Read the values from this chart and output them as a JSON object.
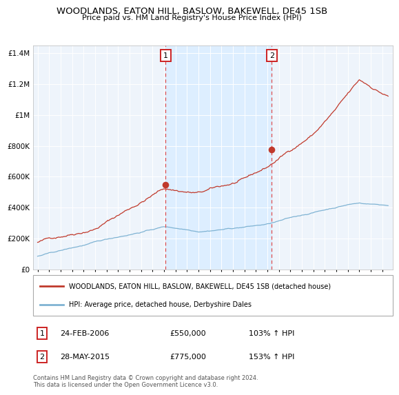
{
  "title": "WOODLANDS, EATON HILL, BASLOW, BAKEWELL, DE45 1SB",
  "subtitle": "Price paid vs. HM Land Registry's House Price Index (HPI)",
  "legend_line1": "WOODLANDS, EATON HILL, BASLOW, BAKEWELL, DE45 1SB (detached house)",
  "legend_line2": "HPI: Average price, detached house, Derbyshire Dales",
  "marker1_date": "24-FEB-2006",
  "marker1_price": "£550,000",
  "marker1_hpi": "103% ↑ HPI",
  "marker2_date": "28-MAY-2015",
  "marker2_price": "£775,000",
  "marker2_hpi": "153% ↑ HPI",
  "footer": "Contains HM Land Registry data © Crown copyright and database right 2024.\nThis data is licensed under the Open Government Licence v3.0.",
  "ylim": [
    0,
    1450000
  ],
  "yticks": [
    0,
    200000,
    400000,
    600000,
    800000,
    1000000,
    1200000,
    1400000
  ],
  "ytick_labels": [
    "£0",
    "£200K",
    "£400K",
    "£600K",
    "£800K",
    "£1M",
    "£1.2M",
    "£1.4M"
  ],
  "red_line_color": "#c0392b",
  "blue_line_color": "#7fb3d3",
  "shade_color": "#ddeeff",
  "marker_box_color": "#cc2222",
  "vline_color": "#e05050",
  "background_color": "#eef4fb",
  "marker1_x": 2006.15,
  "marker2_x": 2015.38,
  "marker1_y": 550000,
  "marker2_y": 775000,
  "xlim_left": 1994.6,
  "xlim_right": 2025.9
}
